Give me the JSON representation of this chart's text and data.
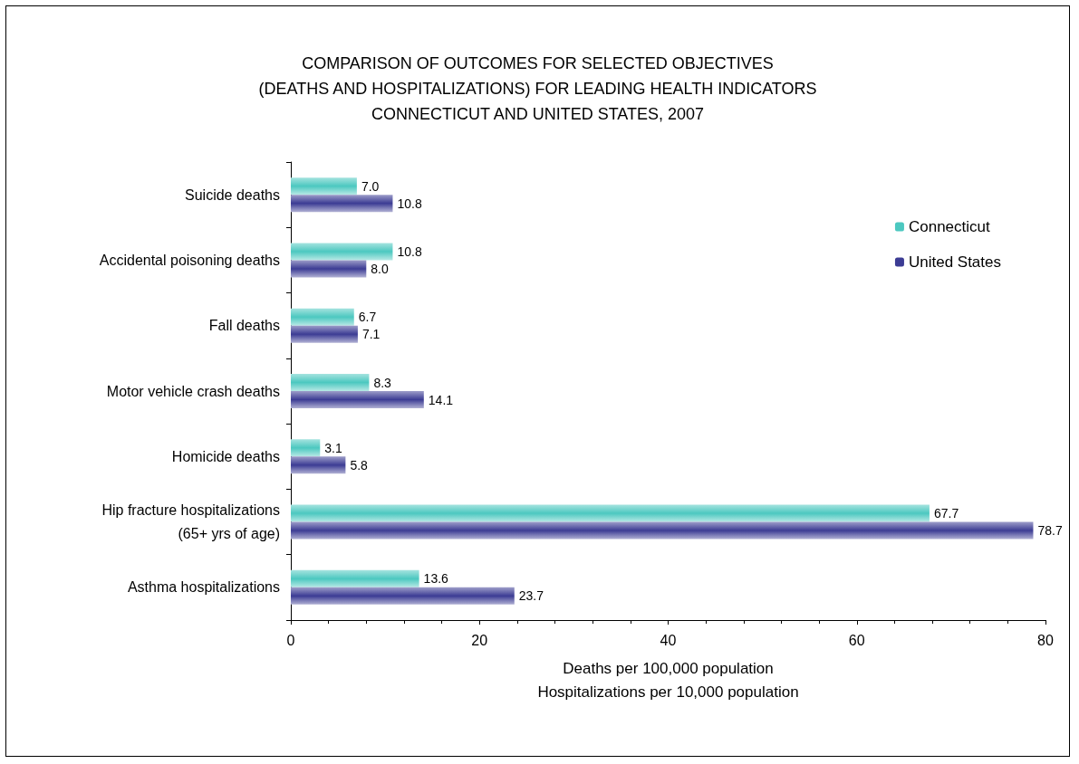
{
  "chart_data": {
    "type": "bar",
    "orientation": "horizontal",
    "title": "COMPARISON OF OUTCOMES FOR SELECTED OBJECTIVES\n(DEATHS AND HOSPITALIZATIONS) FOR LEADING HEALTH INDICATORS\nCONNECTICUT AND UNITED STATES, 2007",
    "xlabel": "Deaths per 100,000 population\nHospitalizations per 10,000 population",
    "categories": [
      "Suicide deaths",
      "Accidental poisoning deaths",
      "Fall deaths",
      "Motor vehicle crash deaths",
      "Homicide deaths",
      "Hip fracture hospitalizations\n(65+ yrs of age)",
      "Asthma hospitalizations"
    ],
    "series": [
      {
        "name": "Connecticut",
        "color": "#4cc8c0",
        "values": [
          7.0,
          10.8,
          6.7,
          8.3,
          3.1,
          67.7,
          13.6
        ],
        "value_labels": [
          "7.0",
          "10.8",
          "6.7",
          "8.3",
          "3.1",
          "67.7",
          "13.6"
        ]
      },
      {
        "name": "United States",
        "color": "#3c3c94",
        "values": [
          10.8,
          8.0,
          7.1,
          14.1,
          5.8,
          78.7,
          23.7
        ],
        "value_labels": [
          "10.8",
          "8.0",
          "7.1",
          "14.1",
          "5.8",
          "78.7",
          "23.7"
        ]
      }
    ],
    "xlim": [
      0,
      80
    ],
    "xticks": [
      0,
      20,
      40,
      60,
      80
    ],
    "grid": false,
    "legend": "top right"
  }
}
